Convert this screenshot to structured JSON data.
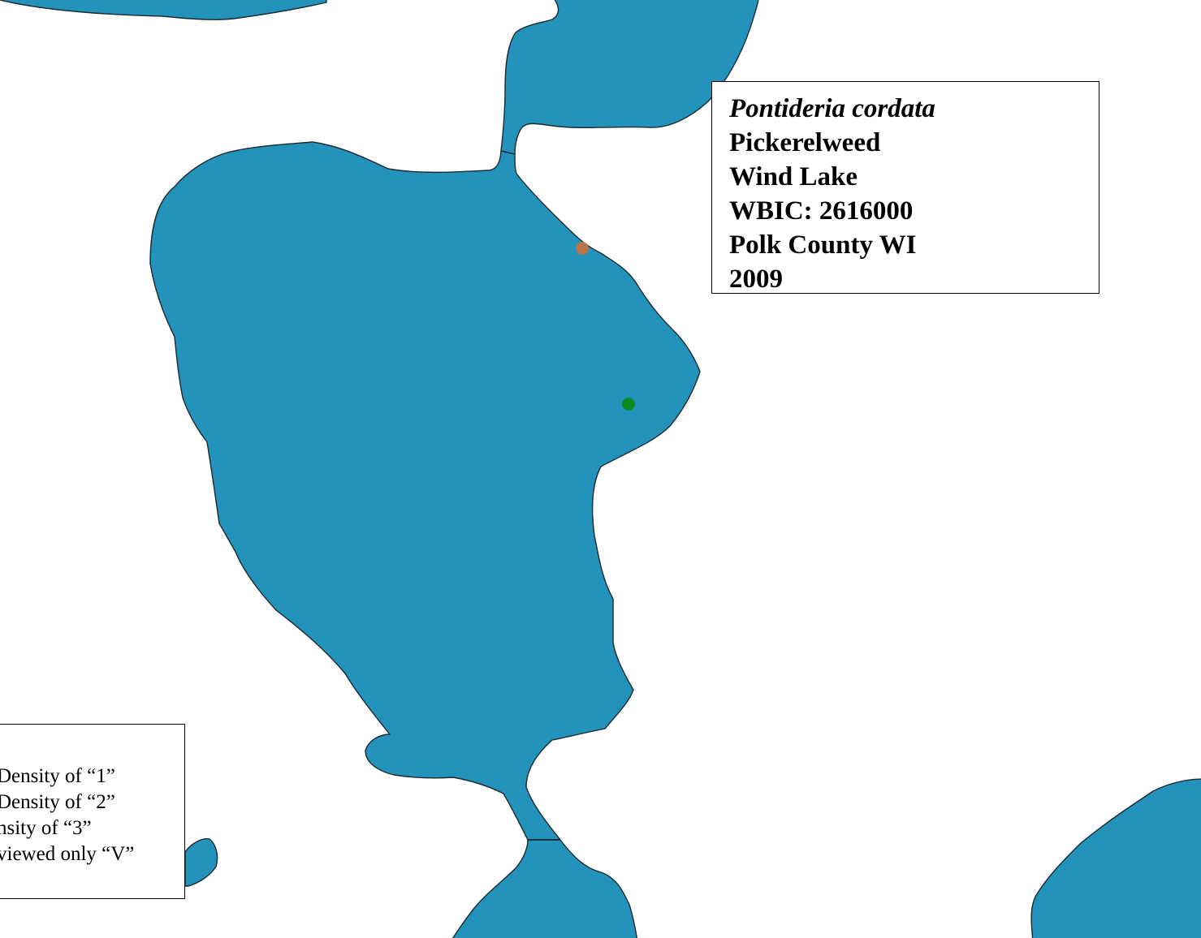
{
  "title_box": {
    "species": "Pontideria cordata",
    "common_name": "Pickerelweed",
    "lake": "Wind Lake",
    "wbic": "WBIC: 2616000",
    "county": "Polk County WI",
    "year": "2009"
  },
  "legend": {
    "items": [
      {
        "label": "Density of “1”"
      },
      {
        "label": "Density of “2”"
      },
      {
        "label": "nsity of “3”"
      },
      {
        "label": "viewed only “V”"
      }
    ]
  },
  "map": {
    "water_color": "#2493bb",
    "survey_points": [
      {
        "type": "Density of “2”",
        "color": "#b8734a"
      },
      {
        "type": "Density of “1”",
        "color": "#0b8a1f"
      }
    ]
  }
}
